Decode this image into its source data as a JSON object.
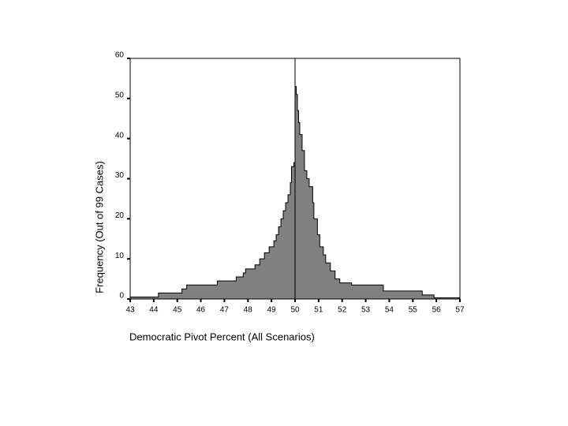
{
  "chart_data": {
    "type": "histogram",
    "xlabel": "Democratic Pivot Percent (All Scenarios)",
    "ylabel": "Frequency (Out of 99 Cases)",
    "bins": [
      43,
      44.2,
      45.2,
      45.4,
      46.7,
      47.5,
      47.8,
      47.9,
      48.3,
      48.5,
      48.7,
      48.9,
      49.1,
      49.2,
      49.3,
      49.4,
      49.5,
      49.6,
      49.7,
      49.8,
      49.85,
      49.95,
      50.0,
      50.05,
      50.1,
      50.15,
      50.2,
      50.3,
      50.4,
      50.5,
      50.6,
      50.75,
      50.8,
      50.95,
      51.05,
      51.2,
      51.3,
      51.5,
      51.7,
      51.9,
      52.4,
      53.75,
      55.4,
      55.9,
      57
    ],
    "values": [
      0.5,
      1.5,
      2.5,
      3.5,
      4.5,
      5.5,
      6.5,
      7.5,
      8.5,
      10,
      11.5,
      13,
      14.5,
      16,
      18,
      20,
      22,
      24,
      26,
      29,
      33,
      34,
      53,
      51,
      47,
      44,
      41,
      37,
      32,
      30,
      28,
      24,
      20,
      16,
      13,
      11,
      9,
      7,
      5,
      4,
      3.5,
      2,
      1,
      0.3
    ],
    "color": "#808080",
    "vline": 50,
    "xlim": [
      43,
      57
    ],
    "xticks": [
      43,
      44,
      45,
      46,
      47,
      48,
      49,
      50,
      51,
      52,
      53,
      54,
      55,
      56,
      57
    ],
    "ylim": [
      0,
      60
    ],
    "yticks": [
      0,
      10,
      20,
      30,
      40,
      50,
      60
    ]
  }
}
